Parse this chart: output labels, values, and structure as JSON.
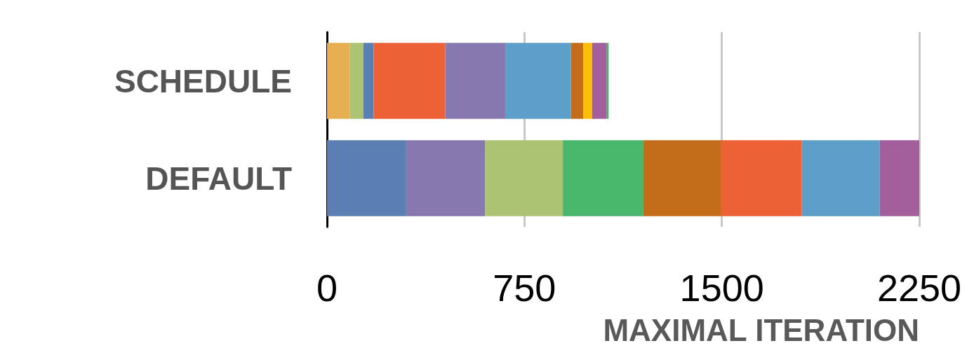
{
  "chart_data": {
    "type": "bar",
    "orientation": "horizontal",
    "stacked": true,
    "xlabel": "MAXIMAL ITERATION",
    "categories": [
      "SCHEDULE",
      "DEFAULT"
    ],
    "series": [
      {
        "colors": [
          "#e6b052",
          "#5b7fb3"
        ],
        "values": [
          87,
          301
        ]
      },
      {
        "colors": [
          "#abc372",
          "#8878b0"
        ],
        "values": [
          51,
          299
        ]
      },
      {
        "colors": [
          "#5b7fb3",
          "#abc372"
        ],
        "values": [
          39,
          296
        ]
      },
      {
        "colors": [
          "#ec6236",
          "#48b76b"
        ],
        "values": [
          272,
          306
        ]
      },
      {
        "colors": [
          "#8878b0",
          "#c36d1a"
        ],
        "values": [
          228,
          296
        ]
      },
      {
        "colors": [
          "#5d9fc8",
          "#ec6236"
        ],
        "values": [
          250,
          306
        ]
      },
      {
        "colors": [
          "#c36d1a",
          "#5d9fc8"
        ],
        "values": [
          46,
          296
        ]
      },
      {
        "colors": [
          "#fbbf05",
          "#a35f9c"
        ],
        "values": [
          34,
          150
        ]
      },
      {
        "colors": [
          "#a35f9c",
          null
        ],
        "values": [
          56,
          null
        ]
      },
      {
        "colors": [
          "#48b76b",
          null
        ],
        "values": [
          7,
          null
        ]
      }
    ],
    "xlim": [
      0,
      2250
    ],
    "xticks": [
      0,
      750,
      1500,
      2250
    ],
    "grid": "x"
  }
}
